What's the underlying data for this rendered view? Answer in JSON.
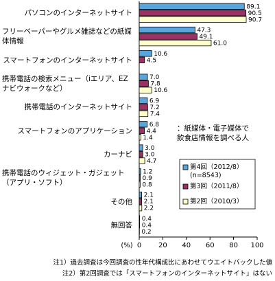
{
  "chart_data": {
    "type": "bar",
    "orientation": "horizontal",
    "categories": [
      "パソコンのインターネットサイト",
      "フリーペーパーやグルメ雑誌などの紙媒体情報",
      "スマートフォンのインターネットサイト",
      "携帯電話の検索メニュー（iエリア、EZナビウォークなど）",
      "携帯電話のインターネットサイト",
      "スマートフォンのアプリケーション",
      "カーナビ",
      "携帯電話のウィジェット・ガジェット（アプリ・ソフト）",
      "その他",
      "無回答"
    ],
    "series": [
      {
        "name": "第4回（2012/8）\n(n=8543)",
        "color": "#5aa6dc",
        "values": [
          89.1,
          47.3,
          10.6,
          7.0,
          6.9,
          6.8,
          3.0,
          1.2,
          2.1,
          0.4
        ],
        "value_labels": [
          "89.1",
          "47.3",
          "10.6",
          "7.0",
          "6.9",
          "6.8",
          "3.0",
          "1.2",
          "2.1",
          "0.4"
        ]
      },
      {
        "name": "第3回（2011/8）",
        "color": "#993366",
        "values": [
          90.5,
          49.1,
          4.5,
          7.8,
          7.2,
          4.4,
          3.0,
          0.9,
          2.1,
          0.4
        ],
        "value_labels": [
          "90.5",
          "49.1",
          "4.5",
          "7.8",
          "7.2",
          "4.4",
          "3.0",
          "0.9",
          "2.1",
          "0.4"
        ]
      },
      {
        "name": "第2回（2010/3）",
        "color": "#ffffcc",
        "values": [
          90.7,
          61.0,
          null,
          10.6,
          7.4,
          1.4,
          4.7,
          0.8,
          2.2,
          0.2
        ],
        "value_labels": [
          "90.7",
          "61.0",
          null,
          "10.6",
          "7.4",
          "1.4",
          "4.7",
          "0.8",
          "2.2",
          "0.2"
        ]
      }
    ],
    "xlabel": "(%)",
    "xlim": [
      0,
      100
    ],
    "xticks": [
      0,
      20,
      40,
      60,
      80,
      100
    ],
    "annotation": "：紙媒体・電子媒体で飲食店情報を調べる人",
    "notes": [
      "注1）過去調査は今回調査の性年代構成比にあわせてウエイトバックした値",
      "注2）第2回調査では「スマートフォンのインターネットサイト」はない"
    ]
  }
}
